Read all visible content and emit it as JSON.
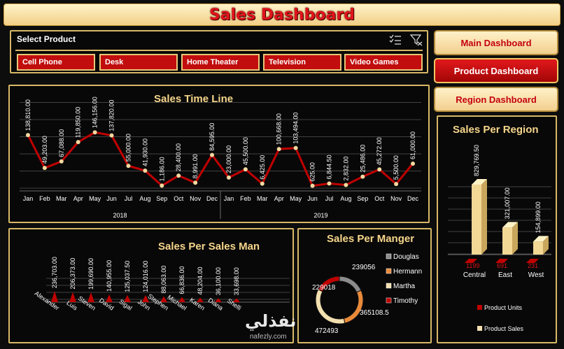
{
  "header": {
    "title": "Sales Dashboard"
  },
  "slicer": {
    "title": "Select Product",
    "items": [
      "Cell Phone",
      "Desk",
      "Home Theater",
      "Television",
      "Video Games"
    ]
  },
  "nav": {
    "main": "Main Dashboard",
    "product": "Product Dashboard",
    "region": "Region Dashboard"
  },
  "colors": {
    "accent": "#e0141a",
    "gold": "#d8b867",
    "line": "#c00000",
    "cream": "#f2d9a0"
  },
  "watermark": {
    "arabic": "نفذلي",
    "latin": "nafezly.com"
  },
  "chart_data": [
    {
      "id": "timeline",
      "type": "line",
      "title": "Sales Time Line",
      "x_months": [
        "Jan",
        "Feb",
        "Mar",
        "Apr",
        "May",
        "Jun",
        "Jul",
        "Aug",
        "Sep",
        "Oct",
        "Nov",
        "Dec",
        "Jan",
        "Feb",
        "Mar",
        "Apr",
        "May",
        "Jun",
        "Jul",
        "Aug",
        "Sep",
        "Oct",
        "Nov",
        "Dec"
      ],
      "years": [
        "2018",
        "2019"
      ],
      "values": [
        138810,
        49203,
        67088,
        119850,
        146156,
        137820,
        55000,
        41930,
        1186,
        28400,
        8991,
        84595,
        23000,
        45500,
        6425,
        100668,
        103494,
        625,
        6844.5,
        2832,
        25486,
        45272,
        5500,
        61000
      ],
      "labels": [
        "138,810.00",
        "49,203.00",
        "67,088.00",
        "119,850.00",
        "146,156.00",
        "137,820.00",
        "55,000.00",
        "41,930.00",
        "1,186.00",
        "28,400.00",
        "8,991.00",
        "84,595.00",
        "23,000.00",
        "45,500.00",
        "6,425.00",
        "100,668.00",
        "103,494.00",
        "625.00",
        "6,844.50",
        "2,832.00",
        "25,486.00",
        "45,272.00",
        "5,500.00",
        "61,000.00"
      ]
    },
    {
      "id": "salesman",
      "type": "bar",
      "title": "Sales Per Sales Man",
      "categories": [
        "Alexander",
        "Luis",
        "Steven",
        "David",
        "Sigal",
        "John",
        "Stephen",
        "Michael",
        "Karen",
        "Diana",
        "Shelli"
      ],
      "values": [
        236703,
        206373,
        199690,
        140955,
        125037.5,
        124016,
        88063,
        66836,
        48204,
        36100,
        33698
      ],
      "labels": [
        "236,703.00",
        "206,373.00",
        "199,690.00",
        "140,955.00",
        "125,037.50",
        "124,016.00",
        "88,063.00",
        "66,836.00",
        "48,204.00",
        "36,100.00",
        "33,698.00"
      ]
    },
    {
      "id": "manager",
      "type": "pie",
      "title": "Sales Per Manger",
      "categories": [
        "Douglas",
        "Hermann",
        "Martha",
        "Timothy"
      ],
      "values": [
        239056,
        365108.5,
        472493,
        229018
      ],
      "labels": [
        "239056",
        "365108.5",
        "472493",
        "229018"
      ],
      "colors": [
        "#8c8c8c",
        "#e98a3a",
        "#f3e0b0",
        "#c00000"
      ]
    },
    {
      "id": "region",
      "type": "bar",
      "title": "Sales Per Region",
      "categories": [
        "Central",
        "East",
        "West"
      ],
      "series": [
        {
          "name": "Product Units",
          "values": [
            1199,
            691,
            231
          ]
        },
        {
          "name": "Product Sales",
          "values": [
            829769.5,
            321007,
            154899
          ]
        }
      ],
      "sales_labels": [
        "829,769.50",
        "321,007.00",
        "154,899.00"
      ],
      "unit_labels": [
        "1199",
        "691",
        "231"
      ]
    }
  ]
}
